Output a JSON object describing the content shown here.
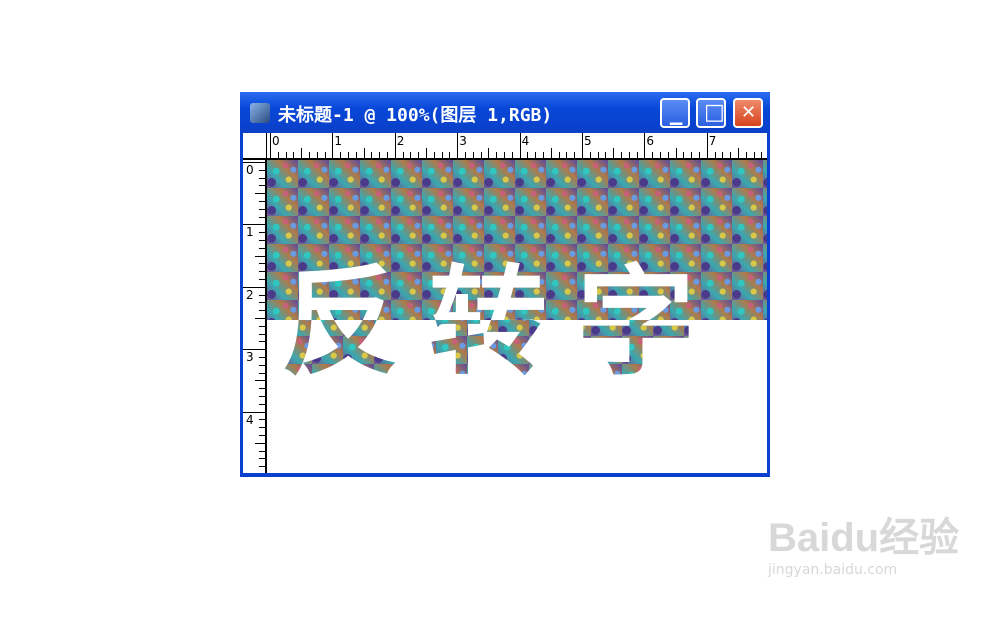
{
  "window": {
    "title": "未标题-1 @ 100%(图层 1,RGB)",
    "minimize": "▁",
    "maximize": "□",
    "close": "✕"
  },
  "ruler": {
    "top_labels": [
      "0",
      "1",
      "2",
      "3",
      "4",
      "5",
      "6",
      "7"
    ],
    "left_labels": [
      "0",
      "1",
      "2",
      "3",
      "4"
    ]
  },
  "canvas": {
    "text": "反转字"
  },
  "watermark": {
    "brand": "Baidu经验",
    "url": "jingyan.baidu.com"
  }
}
